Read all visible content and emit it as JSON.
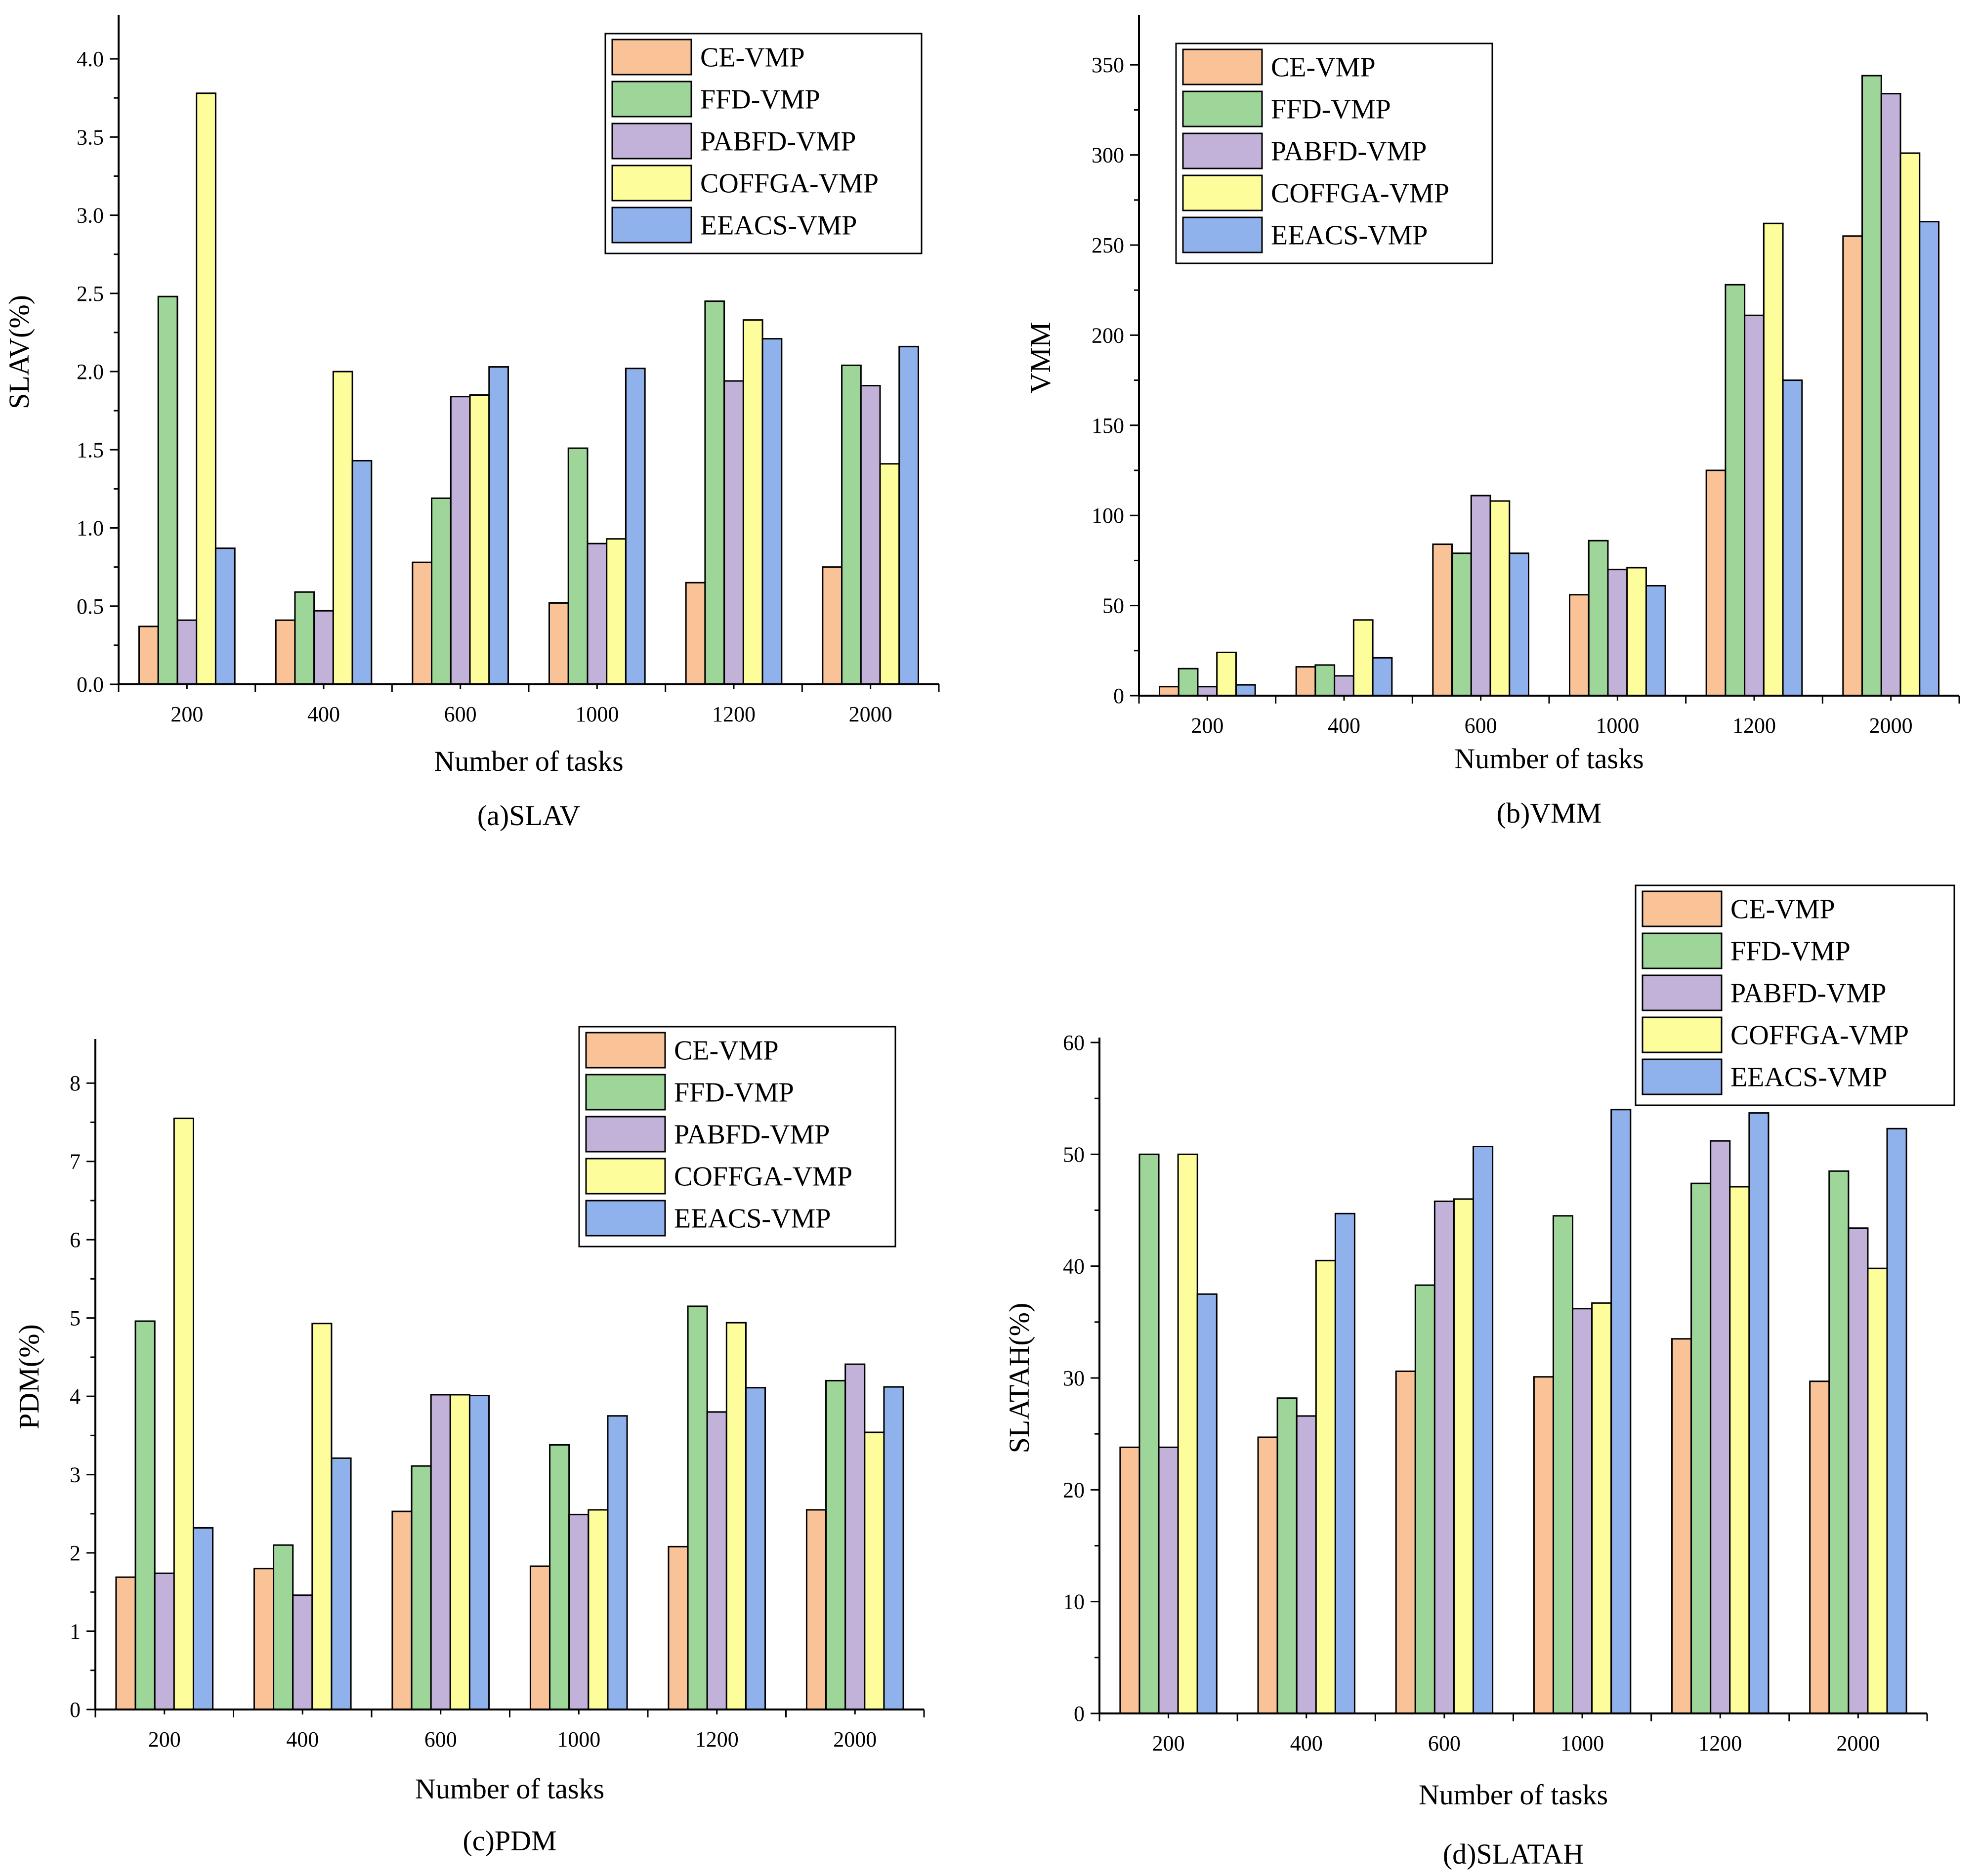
{
  "colors": {
    "CE-VMP": "#f9c397",
    "FFD-VMP": "#9ed69a",
    "PABFD-VMP": "#c2b2d9",
    "COFFGA-VMP": "#fdfd9c",
    "EEACS-VMP": "#8fb2ec"
  },
  "chart_data": [
    {
      "type": "bar",
      "caption": "(a)SLAV",
      "xlabel": "Number of tasks",
      "ylabel": "SLAV(%)",
      "categories": [
        "200",
        "400",
        "600",
        "1000",
        "1200",
        "2000"
      ],
      "ylim": [
        0,
        4.25
      ],
      "yticks": [
        0.0,
        0.5,
        1.0,
        1.5,
        2.0,
        2.5,
        3.0,
        3.5,
        4.0
      ],
      "ytick_labels": [
        "0.0",
        "0.5",
        "1.0",
        "1.5",
        "2.0",
        "2.5",
        "3.0",
        "3.5",
        "4.0"
      ],
      "legend_position": "top-right",
      "series": [
        {
          "name": "CE-VMP",
          "values": [
            0.37,
            0.41,
            0.78,
            0.52,
            0.65,
            0.75
          ]
        },
        {
          "name": "FFD-VMP",
          "values": [
            2.48,
            0.59,
            1.19,
            1.51,
            2.45,
            2.04
          ]
        },
        {
          "name": "PABFD-VMP",
          "values": [
            0.41,
            0.47,
            1.84,
            0.9,
            1.94,
            1.91
          ]
        },
        {
          "name": "COFFGA-VMP",
          "values": [
            3.78,
            2.0,
            1.85,
            0.93,
            2.33,
            1.41
          ]
        },
        {
          "name": "EEACS-VMP",
          "values": [
            0.87,
            1.43,
            2.03,
            2.02,
            2.21,
            2.16
          ]
        }
      ]
    },
    {
      "type": "bar",
      "caption": "(b)VMM",
      "xlabel": "Number of tasks",
      "ylabel": "VMM",
      "categories": [
        "200",
        "400",
        "600",
        "1000",
        "1200",
        "2000"
      ],
      "ylim": [
        0,
        375
      ],
      "yticks": [
        0,
        50,
        100,
        150,
        200,
        250,
        300,
        350
      ],
      "ytick_labels": [
        "0",
        "50",
        "100",
        "150",
        "200",
        "250",
        "300",
        "350"
      ],
      "legend_position": "top-left",
      "series": [
        {
          "name": "CE-VMP",
          "values": [
            5,
            16,
            84,
            56,
            125,
            255
          ]
        },
        {
          "name": "FFD-VMP",
          "values": [
            15,
            17,
            79,
            86,
            228,
            344
          ]
        },
        {
          "name": "PABFD-VMP",
          "values": [
            5,
            11,
            111,
            70,
            211,
            334
          ]
        },
        {
          "name": "COFFGA-VMP",
          "values": [
            24,
            42,
            108,
            71,
            262,
            301
          ]
        },
        {
          "name": "EEACS-VMP",
          "values": [
            6,
            21,
            79,
            61,
            175,
            263
          ]
        }
      ]
    },
    {
      "type": "bar",
      "caption": "(c)PDM",
      "xlabel": "Number of tasks",
      "ylabel": "PDM(%)",
      "categories": [
        "200",
        "400",
        "600",
        "1000",
        "1200",
        "2000"
      ],
      "ylim": [
        0,
        8.5
      ],
      "yticks": [
        0,
        1,
        2,
        3,
        4,
        5,
        6,
        7,
        8
      ],
      "ytick_labels": [
        "0",
        "1",
        "2",
        "3",
        "4",
        "5",
        "6",
        "7",
        "8"
      ],
      "legend_position": "top-right",
      "series": [
        {
          "name": "CE-VMP",
          "values": [
            1.69,
            1.8,
            2.53,
            1.83,
            2.08,
            2.55
          ]
        },
        {
          "name": "FFD-VMP",
          "values": [
            4.96,
            2.1,
            3.11,
            3.38,
            5.15,
            4.2
          ]
        },
        {
          "name": "PABFD-VMP",
          "values": [
            1.74,
            1.46,
            4.02,
            2.49,
            3.8,
            4.41
          ]
        },
        {
          "name": "COFFGA-VMP",
          "values": [
            7.55,
            4.93,
            4.02,
            2.55,
            4.94,
            3.54
          ]
        },
        {
          "name": "EEACS-VMP",
          "values": [
            2.32,
            3.21,
            4.01,
            3.75,
            4.11,
            4.12
          ]
        }
      ]
    },
    {
      "type": "bar",
      "caption": "(d)SLATAH",
      "xlabel": "Number of tasks",
      "ylabel": "SLATAH(%)",
      "categories": [
        "200",
        "400",
        "600",
        "1000",
        "1200",
        "2000"
      ],
      "ylim": [
        0,
        60
      ],
      "yticks": [
        0,
        10,
        20,
        30,
        40,
        50,
        60
      ],
      "ytick_labels": [
        "0",
        "10",
        "20",
        "30",
        "40",
        "50",
        "60"
      ],
      "legend_position": "top-right, above plot",
      "series": [
        {
          "name": "CE-VMP",
          "values": [
            23.8,
            24.7,
            30.6,
            30.1,
            33.5,
            29.7
          ]
        },
        {
          "name": "FFD-VMP",
          "values": [
            50.0,
            28.2,
            38.3,
            44.5,
            47.4,
            48.5
          ]
        },
        {
          "name": "PABFD-VMP",
          "values": [
            23.8,
            26.6,
            45.8,
            36.2,
            51.2,
            43.4
          ]
        },
        {
          "name": "COFFGA-VMP",
          "values": [
            50.0,
            40.5,
            46.0,
            36.7,
            47.1,
            39.8
          ]
        },
        {
          "name": "EEACS-VMP",
          "values": [
            37.5,
            44.7,
            50.7,
            54.0,
            53.7,
            52.3
          ]
        }
      ]
    }
  ]
}
